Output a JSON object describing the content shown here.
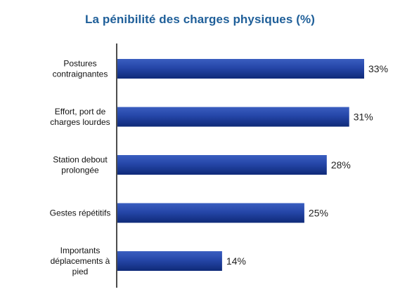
{
  "chart_data": {
    "type": "bar",
    "orientation": "horizontal",
    "title": "La pénibilité des charges physiques (%)",
    "xlabel": "",
    "ylabel": "",
    "categories": [
      [
        "Postures",
        "contraignantes"
      ],
      [
        "Effort, port de",
        "charges lourdes"
      ],
      [
        "Station debout",
        "prolongée"
      ],
      [
        "Gestes répétitifs"
      ],
      [
        "Importants",
        "déplacements à",
        "pied"
      ]
    ],
    "values": [
      33,
      31,
      28,
      25,
      14
    ],
    "value_labels": [
      "33%",
      "31%",
      "28%",
      "25%",
      "14%"
    ],
    "xlim": [
      0,
      33
    ],
    "grid": false,
    "legend": "none",
    "colors": {
      "bar_dark": "#0f2a78",
      "bar_mid": "#2546a8",
      "bar_light": "#3a5ec0",
      "title": "#1f5f99",
      "axis": "#111111"
    }
  }
}
